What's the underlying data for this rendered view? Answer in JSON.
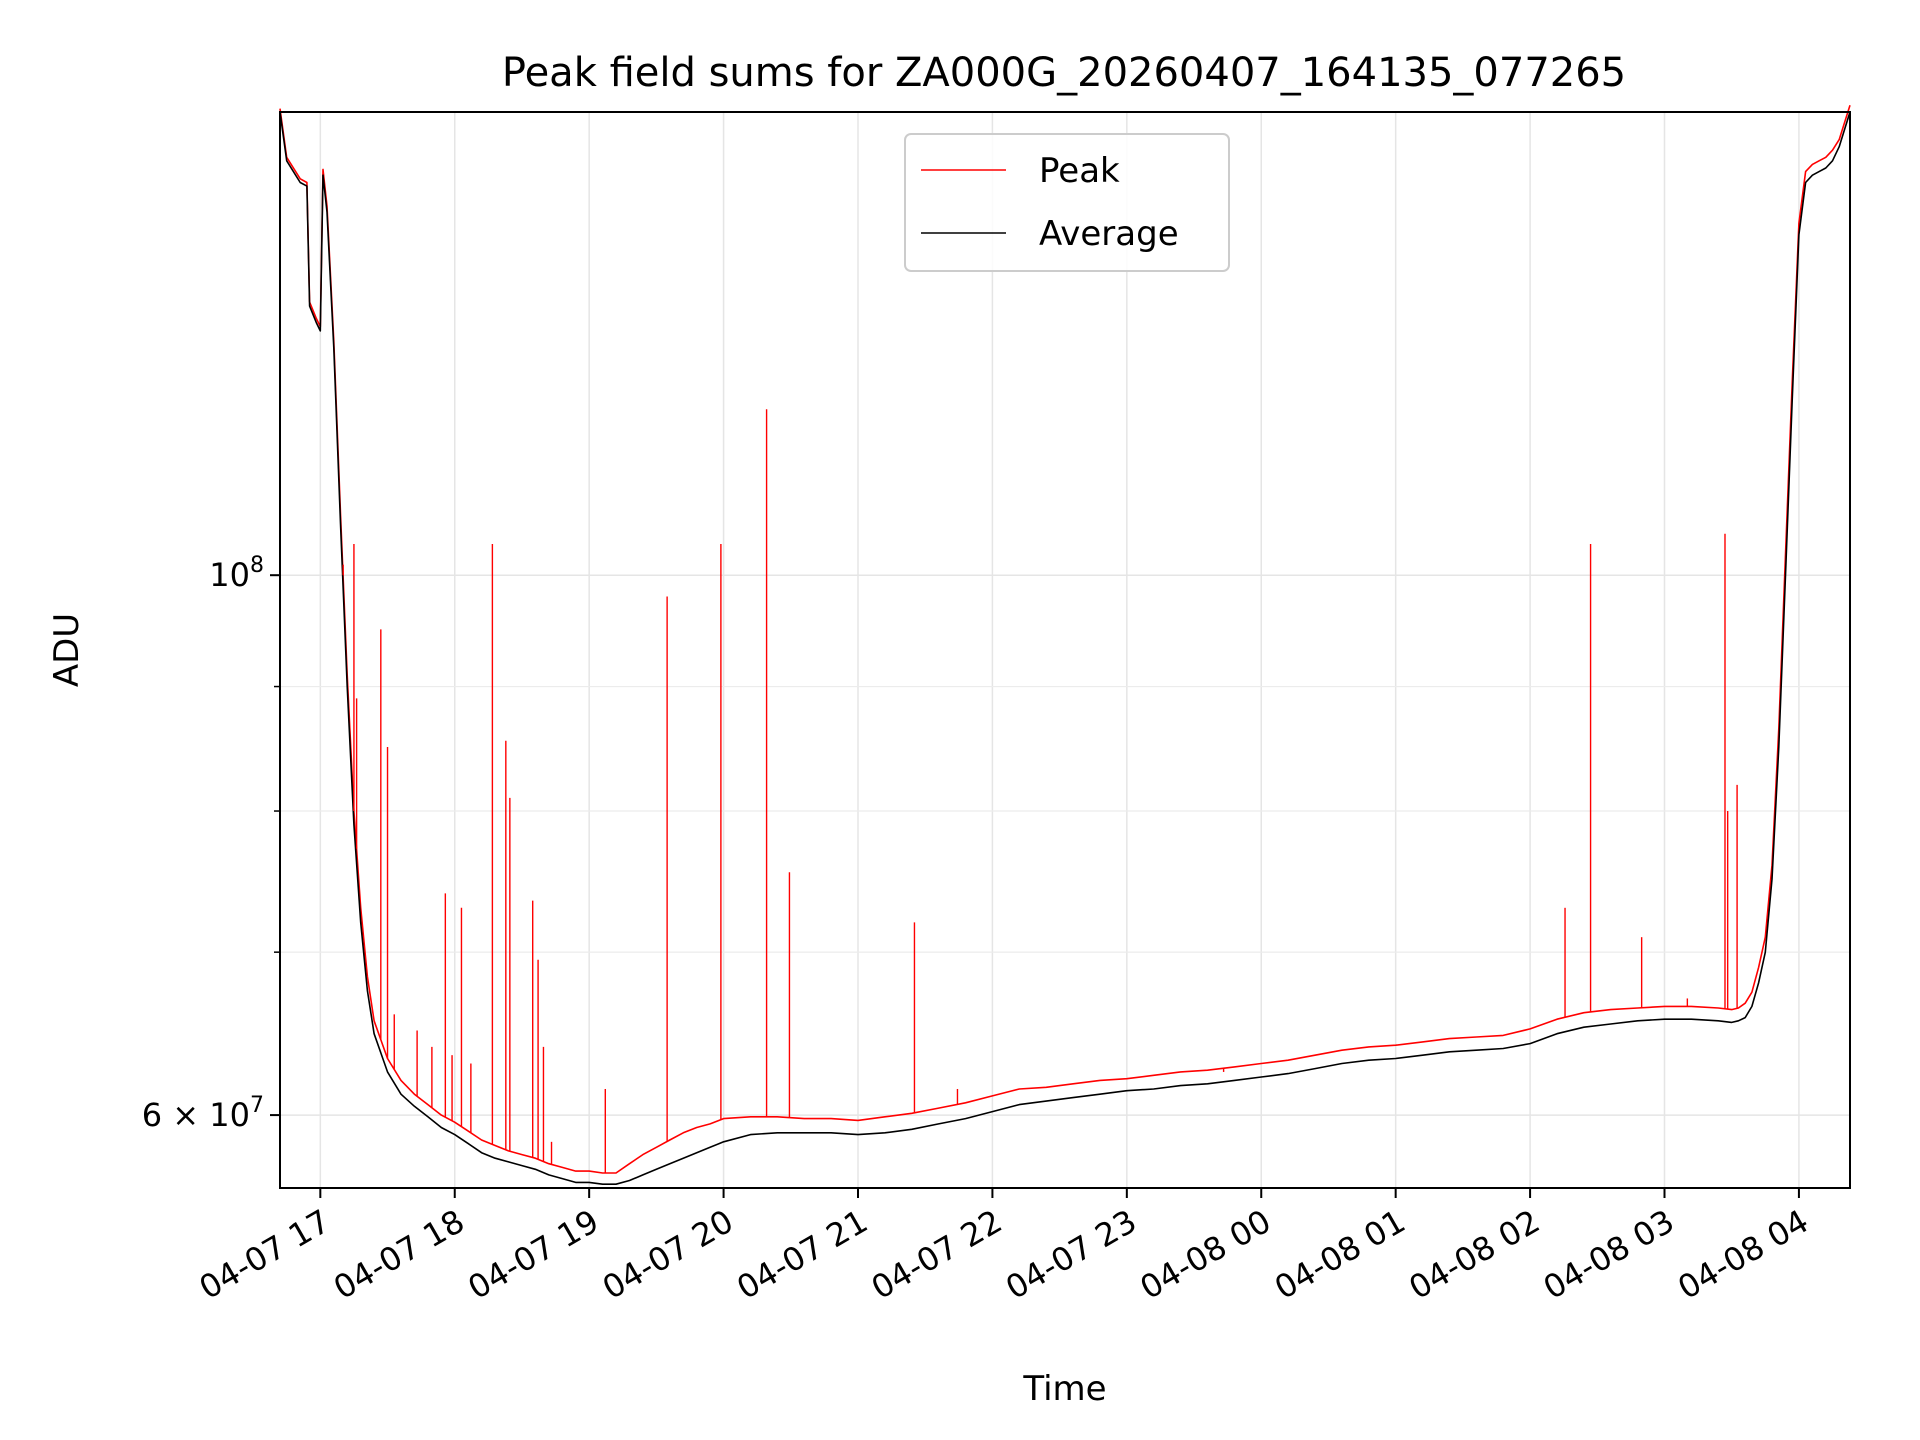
{
  "chart_data": {
    "type": "line",
    "title": "Peak field sums for ZA000G_20260407_164135_077265",
    "xlabel": "Time",
    "ylabel": "ADU",
    "yscale": "log",
    "xlim": [
      16.7,
      28.38
    ],
    "ylim": [
      56000000,
      155000000
    ],
    "grid": true,
    "legend_position": "top-center",
    "x_ticks": [
      {
        "value": 17,
        "label": "04-07 17"
      },
      {
        "value": 18,
        "label": "04-07 18"
      },
      {
        "value": 19,
        "label": "04-07 19"
      },
      {
        "value": 20,
        "label": "04-07 20"
      },
      {
        "value": 21,
        "label": "04-07 21"
      },
      {
        "value": 22,
        "label": "04-07 22"
      },
      {
        "value": 23,
        "label": "04-07 23"
      },
      {
        "value": 24,
        "label": "04-08 00"
      },
      {
        "value": 25,
        "label": "04-08 01"
      },
      {
        "value": 26,
        "label": "04-08 02"
      },
      {
        "value": 27,
        "label": "04-08 03"
      },
      {
        "value": 28,
        "label": "04-08 04"
      }
    ],
    "y_major_ticks": [
      {
        "value": 60000000,
        "label": "6 × 10",
        "exp": "7"
      },
      {
        "value": 100000000,
        "label": "10",
        "exp": "8"
      }
    ],
    "y_minor_ticks": [
      70000000,
      80000000,
      90000000
    ],
    "legend": [
      {
        "name": "Peak",
        "color": "#ff0000"
      },
      {
        "name": "Average",
        "color": "#000000"
      }
    ],
    "series": [
      {
        "name": "Average",
        "color": "#000000",
        "x": [
          16.7,
          16.75,
          16.85,
          16.9,
          16.92,
          16.97,
          17.0,
          17.02,
          17.05,
          17.1,
          17.15,
          17.2,
          17.25,
          17.3,
          17.35,
          17.4,
          17.5,
          17.6,
          17.7,
          17.8,
          17.9,
          18.0,
          18.1,
          18.2,
          18.3,
          18.4,
          18.5,
          18.6,
          18.7,
          18.8,
          18.9,
          19.0,
          19.1,
          19.2,
          19.3,
          19.4,
          19.5,
          19.6,
          19.7,
          19.8,
          19.9,
          20.0,
          20.2,
          20.4,
          20.6,
          20.8,
          21.0,
          21.2,
          21.4,
          21.6,
          21.8,
          22.0,
          22.2,
          22.4,
          22.6,
          22.8,
          23.0,
          23.2,
          23.4,
          23.6,
          23.8,
          24.0,
          24.2,
          24.4,
          24.6,
          24.8,
          25.0,
          25.2,
          25.4,
          25.6,
          25.8,
          26.0,
          26.2,
          26.4,
          26.6,
          26.8,
          27.0,
          27.2,
          27.4,
          27.5,
          27.55,
          27.6,
          27.65,
          27.7,
          27.75,
          27.8,
          27.85,
          27.9,
          27.95,
          28.0,
          28.05,
          28.1,
          28.15,
          28.2,
          28.25,
          28.3,
          28.38
        ],
        "values": [
          155000000,
          148000000,
          145000000,
          144500000,
          129000000,
          127000000,
          126000000,
          146000000,
          141000000,
          124000000,
          105000000,
          90000000,
          79000000,
          72000000,
          67500000,
          64800000,
          62500000,
          61200000,
          60500000,
          59900000,
          59300000,
          58900000,
          58400000,
          57900000,
          57600000,
          57400000,
          57200000,
          57000000,
          56700000,
          56500000,
          56300000,
          56300000,
          56200000,
          56200000,
          56400000,
          56700000,
          57000000,
          57300000,
          57600000,
          57900000,
          58200000,
          58500000,
          58900000,
          59000000,
          59000000,
          59000000,
          58900000,
          59000000,
          59200000,
          59500000,
          59800000,
          60200000,
          60600000,
          60800000,
          61000000,
          61200000,
          61400000,
          61500000,
          61700000,
          61800000,
          62000000,
          62200000,
          62400000,
          62700000,
          63000000,
          63200000,
          63300000,
          63500000,
          63700000,
          63800000,
          63900000,
          64200000,
          64800000,
          65200000,
          65400000,
          65600000,
          65700000,
          65700000,
          65600000,
          65500000,
          65600000,
          65800000,
          66500000,
          68000000,
          70000000,
          75000000,
          85000000,
          100000000,
          118000000,
          138000000,
          145000000,
          146000000,
          146500000,
          147000000,
          148000000,
          150000000,
          155000000
        ]
      },
      {
        "name": "Peak",
        "color": "#ff0000",
        "x": [
          16.7,
          16.75,
          16.85,
          16.9,
          16.92,
          16.97,
          17.0,
          17.02,
          17.05,
          17.1,
          17.15,
          17.2,
          17.25,
          17.3,
          17.35,
          17.4,
          17.5,
          17.6,
          17.7,
          17.8,
          17.9,
          18.0,
          18.1,
          18.2,
          18.3,
          18.4,
          18.5,
          18.6,
          18.7,
          18.8,
          18.9,
          19.0,
          19.1,
          19.2,
          19.3,
          19.4,
          19.5,
          19.6,
          19.7,
          19.8,
          19.9,
          20.0,
          20.2,
          20.4,
          20.6,
          20.8,
          21.0,
          21.2,
          21.4,
          21.6,
          21.8,
          22.0,
          22.2,
          22.4,
          22.6,
          22.8,
          23.0,
          23.2,
          23.4,
          23.6,
          23.8,
          24.0,
          24.2,
          24.4,
          24.6,
          24.8,
          25.0,
          25.2,
          25.4,
          25.6,
          25.8,
          26.0,
          26.2,
          26.4,
          26.6,
          26.8,
          27.0,
          27.2,
          27.4,
          27.5,
          27.55,
          27.6,
          27.65,
          27.7,
          27.75,
          27.8,
          27.85,
          27.9,
          27.95,
          28.0,
          28.05,
          28.1,
          28.15,
          28.2,
          28.25,
          28.3,
          28.38
        ],
        "values": [
          155500000,
          148500000,
          145500000,
          145000000,
          129500000,
          127500000,
          126500000,
          146800000,
          141800000,
          124800000,
          106000000,
          91000000,
          80000000,
          73000000,
          68400000,
          65600000,
          63300000,
          62000000,
          61200000,
          60600000,
          60000000,
          59600000,
          59100000,
          58600000,
          58300000,
          58000000,
          57800000,
          57600000,
          57300000,
          57100000,
          56900000,
          56900000,
          56800000,
          56800000,
          57300000,
          57800000,
          58200000,
          58600000,
          59000000,
          59300000,
          59500000,
          59800000,
          59900000,
          59900000,
          59800000,
          59800000,
          59700000,
          59900000,
          60100000,
          60400000,
          60700000,
          61100000,
          61500000,
          61600000,
          61800000,
          62000000,
          62100000,
          62300000,
          62500000,
          62600000,
          62800000,
          63000000,
          63200000,
          63500000,
          63800000,
          64000000,
          64100000,
          64300000,
          64500000,
          64600000,
          64700000,
          65100000,
          65700000,
          66100000,
          66300000,
          66400000,
          66500000,
          66500000,
          66400000,
          66300000,
          66400000,
          66700000,
          67400000,
          69000000,
          71000000,
          76000000,
          86500000,
          102000000,
          120000000,
          139500000,
          146500000,
          147500000,
          148000000,
          148500000,
          149500000,
          151000000,
          156000000
        ]
      }
    ],
    "peak_spikes": [
      {
        "x": 17.17,
        "value": 101000000
      },
      {
        "x": 17.25,
        "value": 103000000
      },
      {
        "x": 17.27,
        "value": 89000000
      },
      {
        "x": 17.45,
        "value": 95000000
      },
      {
        "x": 17.5,
        "value": 85000000
      },
      {
        "x": 17.55,
        "value": 66000000
      },
      {
        "x": 17.72,
        "value": 65000000
      },
      {
        "x": 17.83,
        "value": 64000000
      },
      {
        "x": 17.93,
        "value": 74000000
      },
      {
        "x": 17.98,
        "value": 63500000
      },
      {
        "x": 18.05,
        "value": 73000000
      },
      {
        "x": 18.12,
        "value": 63000000
      },
      {
        "x": 18.28,
        "value": 103000000
      },
      {
        "x": 18.38,
        "value": 85500000
      },
      {
        "x": 18.41,
        "value": 81000000
      },
      {
        "x": 18.58,
        "value": 73500000
      },
      {
        "x": 18.62,
        "value": 69500000
      },
      {
        "x": 18.66,
        "value": 64000000
      },
      {
        "x": 18.72,
        "value": 58500000
      },
      {
        "x": 19.12,
        "value": 61500000
      },
      {
        "x": 19.58,
        "value": 98000000
      },
      {
        "x": 19.98,
        "value": 103000000
      },
      {
        "x": 20.32,
        "value": 117000000
      },
      {
        "x": 20.49,
        "value": 75500000
      },
      {
        "x": 21.42,
        "value": 72000000
      },
      {
        "x": 21.74,
        "value": 61500000
      },
      {
        "x": 23.72,
        "value": 62500000
      },
      {
        "x": 26.26,
        "value": 73000000
      },
      {
        "x": 26.45,
        "value": 103000000
      },
      {
        "x": 26.83,
        "value": 71000000
      },
      {
        "x": 27.17,
        "value": 67000000
      },
      {
        "x": 27.45,
        "value": 104000000
      },
      {
        "x": 27.47,
        "value": 80000000
      },
      {
        "x": 27.54,
        "value": 82000000
      }
    ]
  }
}
